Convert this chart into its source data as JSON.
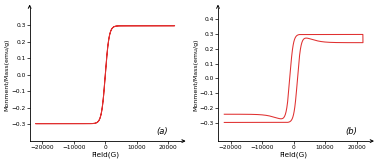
{
  "title_a": "(a)",
  "title_b": "(b)",
  "xlabel": "Field(G)",
  "ylabel": "Monment/Mass(emu/g)",
  "xlim": [
    -24000,
    24000
  ],
  "ylim_a": [
    -0.4,
    0.4
  ],
  "ylim_b": [
    -0.42,
    0.47
  ],
  "xticks": [
    -20000,
    -10000,
    0,
    10000,
    20000
  ],
  "yticks_a": [
    -0.3,
    -0.2,
    -0.1,
    0.0,
    0.1,
    0.2,
    0.3
  ],
  "yticks_b": [
    -0.3,
    -0.2,
    -0.1,
    0.0,
    0.1,
    0.2,
    0.3,
    0.4
  ],
  "line_color": "#e03030",
  "background": "#ffffff"
}
